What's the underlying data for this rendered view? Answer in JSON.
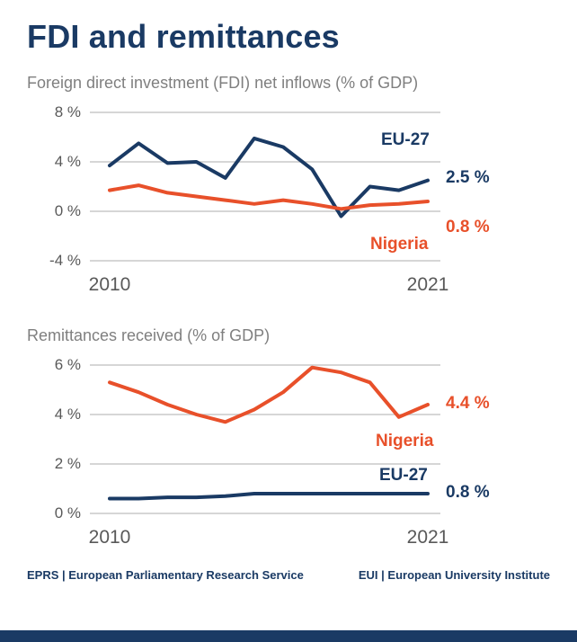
{
  "page": {
    "title": "FDI and remittances",
    "footer_left": "EPRS | European Parliamentary Research Service",
    "footer_right": "EUI | European University Institute"
  },
  "colors": {
    "navy": "#1a3a64",
    "orange": "#e8502a",
    "grid": "#c8c8c8",
    "subtitle_gray": "#7f7f7f",
    "tick_gray": "#595959"
  },
  "chart_data": [
    {
      "type": "line",
      "title": "Foreign direct investment (FDI) net inflows (% of GDP)",
      "xlabel": "",
      "ylabel": "% of GDP",
      "x": [
        2010,
        2011,
        2012,
        2013,
        2014,
        2015,
        2016,
        2017,
        2018,
        2019,
        2020,
        2021
      ],
      "x_start_label": "2010",
      "x_end_label": "2021",
      "ylim": [
        -4,
        8
      ],
      "grid": true,
      "legend": "inline-annotations",
      "yticks": [
        {
          "value": 8,
          "label": "8 %"
        },
        {
          "value": 4,
          "label": "4 %"
        },
        {
          "value": 0,
          "label": "0 %"
        },
        {
          "value": -4,
          "label": "-4 %"
        }
      ],
      "series": [
        {
          "name": "EU-27",
          "color_key": "navy",
          "end_label": "2.5 %",
          "values": [
            3.7,
            5.5,
            3.9,
            4.0,
            2.7,
            5.9,
            5.2,
            3.4,
            -0.4,
            2.0,
            1.7,
            2.5
          ]
        },
        {
          "name": "Nigeria",
          "color_key": "orange",
          "end_label": "0.8 %",
          "values": [
            1.7,
            2.1,
            1.5,
            1.2,
            0.9,
            0.6,
            0.9,
            0.6,
            0.2,
            0.5,
            0.6,
            0.8
          ]
        }
      ]
    },
    {
      "type": "line",
      "title": "Remittances received (% of GDP)",
      "xlabel": "",
      "ylabel": "% of GDP",
      "x": [
        2010,
        2011,
        2012,
        2013,
        2014,
        2015,
        2016,
        2017,
        2018,
        2019,
        2020,
        2021
      ],
      "x_start_label": "2010",
      "x_end_label": "2021",
      "ylim": [
        0,
        6
      ],
      "grid": true,
      "legend": "inline-annotations",
      "yticks": [
        {
          "value": 6,
          "label": "6 %"
        },
        {
          "value": 4,
          "label": "4 %"
        },
        {
          "value": 2,
          "label": "2 %"
        },
        {
          "value": 0,
          "label": "0 %"
        }
      ],
      "series": [
        {
          "name": "Nigeria",
          "color_key": "orange",
          "end_label": "4.4 %",
          "values": [
            5.3,
            4.9,
            4.4,
            4.0,
            3.7,
            4.2,
            4.9,
            5.9,
            5.7,
            5.3,
            3.9,
            4.4
          ]
        },
        {
          "name": "EU-27",
          "color_key": "navy",
          "end_label": "0.8 %",
          "values": [
            0.6,
            0.6,
            0.65,
            0.65,
            0.7,
            0.8,
            0.8,
            0.8,
            0.8,
            0.8,
            0.8,
            0.8
          ]
        }
      ]
    }
  ]
}
